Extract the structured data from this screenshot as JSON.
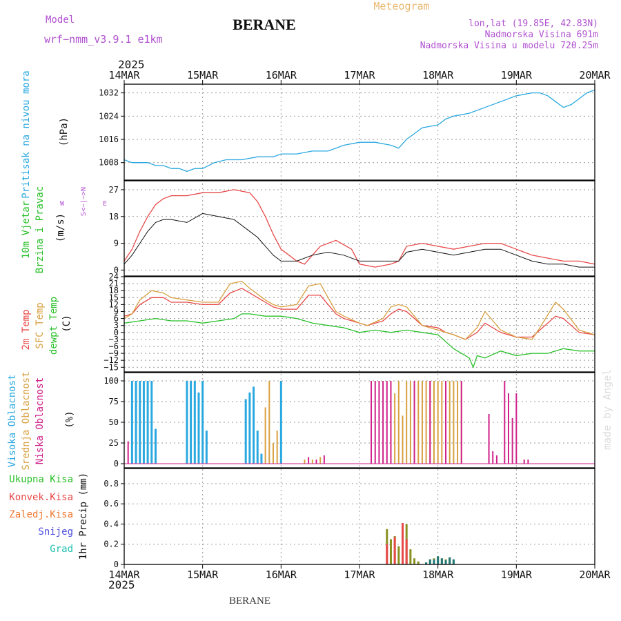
{
  "header": {
    "model_label": "Model",
    "model_name": "wrf−nmm_v3.9.1 e1km",
    "title": "BERANE",
    "subtitle": "Meteogram",
    "coords": "lon,lat (19.85E, 42.83N)",
    "elevation": "Nadmorska Visina 691m",
    "model_elevation": "Nadmorska Visina u modelu 720.25m",
    "year": "2025"
  },
  "footer": {
    "year": "2025",
    "station": "BERANE",
    "watermark": "made by Angel"
  },
  "colors": {
    "pressure": "#2aa8e0",
    "temp2m": "#e84848",
    "sfc": "#d8a040",
    "dewpt": "#28c028",
    "high": "#2aa8e0",
    "mid": "#d8a040",
    "low": "#d0208a",
    "precip_total": "#889020",
    "precip_conv": "#e84848",
    "hail": "#207878",
    "grid": "#999999"
  },
  "chart_data": [
    {
      "type": "time_axis",
      "xlim": [
        0,
        6
      ],
      "ticks": [
        0,
        1,
        2,
        3,
        4,
        5,
        6
      ],
      "tick_labels": [
        "14MAR",
        "15MAR",
        "16MAR",
        "17MAR",
        "18MAR",
        "19MAR",
        "20MAR"
      ]
    },
    {
      "type": "line",
      "labels": [
        "Pritisak na nivou mora"
      ],
      "ylabel": "(hPa)",
      "ylim": [
        1002,
        1035
      ],
      "yticks": [
        1008,
        1016,
        1024,
        1032
      ],
      "grid": true,
      "series": [
        {
          "x": [
            0,
            0.1,
            0.2,
            0.3,
            0.4,
            0.5,
            0.6,
            0.7,
            0.8,
            0.9,
            1.0,
            1.15,
            1.3,
            1.5,
            1.7,
            1.9,
            2.0,
            2.2,
            2.4,
            2.6,
            2.8,
            3.0,
            3.2,
            3.4,
            3.5,
            3.6,
            3.7,
            3.8,
            4.0,
            4.1,
            4.2,
            4.4,
            4.6,
            4.8,
            5.0,
            5.2,
            5.3,
            5.4,
            5.5,
            5.6,
            5.7,
            5.8,
            5.9,
            6.0
          ],
          "values": [
            1009,
            1008,
            1008,
            1008,
            1007,
            1007,
            1006,
            1006,
            1005,
            1006,
            1006,
            1008,
            1009,
            1009,
            1010,
            1010,
            1011,
            1011,
            1012,
            1012,
            1014,
            1015,
            1015,
            1014,
            1013,
            1016,
            1018,
            1020,
            1021,
            1023,
            1024,
            1025,
            1027,
            1029,
            1031,
            1032,
            1032,
            1031,
            1029,
            1027,
            1028,
            1030,
            1032,
            1033
          ]
        }
      ]
    },
    {
      "type": "line",
      "labels": [
        "10m Vjetar",
        "Brzina i Pravac"
      ],
      "ylabel": "(m/s)",
      "compass": {
        "w": "W",
        "e": "E",
        "vert": "S<−|−>N"
      },
      "ylim": [
        -2,
        30
      ],
      "yticks": [
        0,
        9,
        18,
        27
      ],
      "grid": true,
      "series": [
        {
          "name": "gust",
          "x": [
            0,
            0.1,
            0.2,
            0.3,
            0.4,
            0.5,
            0.6,
            0.8,
            1.0,
            1.2,
            1.4,
            1.6,
            1.7,
            1.8,
            1.9,
            2.0,
            2.2,
            2.3,
            2.5,
            2.7,
            2.9,
            3.0,
            3.2,
            3.4,
            3.5,
            3.6,
            3.8,
            4.0,
            4.2,
            4.4,
            4.6,
            4.8,
            5.0,
            5.2,
            5.4,
            5.6,
            5.8,
            6.0
          ],
          "values": [
            3,
            7,
            13,
            18,
            22,
            24,
            25,
            25,
            26,
            26,
            27,
            26,
            23,
            18,
            12,
            7,
            3,
            2,
            8,
            10,
            7,
            2,
            1,
            2,
            3,
            8,
            9,
            8,
            7,
            8,
            9,
            9,
            7,
            5,
            4,
            3,
            3,
            2
          ]
        },
        {
          "name": "speed",
          "x": [
            0,
            0.1,
            0.2,
            0.3,
            0.4,
            0.5,
            0.6,
            0.8,
            1.0,
            1.2,
            1.4,
            1.6,
            1.7,
            1.8,
            1.9,
            2.0,
            2.2,
            2.4,
            2.6,
            2.8,
            3.0,
            3.2,
            3.4,
            3.5,
            3.6,
            3.8,
            4.0,
            4.2,
            4.4,
            4.6,
            4.8,
            5.0,
            5.2,
            5.4,
            5.6,
            5.8,
            6.0
          ],
          "values": [
            2,
            5,
            9,
            13,
            16,
            17,
            17,
            16,
            19,
            18,
            17,
            13,
            11,
            8,
            5,
            3,
            3,
            5,
            6,
            5,
            3,
            3,
            3,
            3,
            6,
            7,
            6,
            5,
            6,
            7,
            7,
            5,
            3,
            2,
            2,
            1,
            1
          ]
        }
      ]
    },
    {
      "type": "line",
      "labels": [
        "2m Temp",
        "SFC Temp",
        "dewpt Temp"
      ],
      "ylabel": "(C)",
      "ylim": [
        -17,
        24
      ],
      "yticks": [
        -15,
        -12,
        -9,
        -6,
        -3,
        0,
        3,
        6,
        9,
        12,
        15,
        18,
        21,
        24
      ],
      "grid": true,
      "series": [
        {
          "name": "2m Temp",
          "x": [
            0,
            0.1,
            0.2,
            0.35,
            0.5,
            0.6,
            0.8,
            1.0,
            1.2,
            1.35,
            1.5,
            1.6,
            1.8,
            1.9,
            2.0,
            2.2,
            2.35,
            2.5,
            2.6,
            2.7,
            2.8,
            3.0,
            3.1,
            3.3,
            3.4,
            3.5,
            3.6,
            3.7,
            3.8,
            4.0,
            4.1,
            4.2,
            4.35,
            4.5,
            4.6,
            4.8,
            5.0,
            5.2,
            5.3,
            5.5,
            5.6,
            5.8,
            6.0
          ],
          "values": [
            7,
            8,
            12,
            15,
            15,
            13,
            13,
            12,
            12,
            17,
            19,
            17,
            13,
            11,
            10,
            10,
            16,
            16,
            12,
            8,
            6,
            4,
            3,
            5,
            8,
            10,
            9,
            6,
            3,
            2,
            0,
            -1,
            -3,
            0,
            4,
            0,
            -2,
            -2,
            1,
            7,
            6,
            0,
            -1
          ]
        },
        {
          "name": "SFC Temp",
          "x": [
            0,
            0.1,
            0.2,
            0.35,
            0.5,
            0.6,
            0.8,
            1.0,
            1.2,
            1.35,
            1.5,
            1.6,
            1.8,
            1.9,
            2.0,
            2.2,
            2.35,
            2.5,
            2.6,
            2.7,
            2.8,
            3.0,
            3.1,
            3.3,
            3.4,
            3.5,
            3.6,
            3.7,
            3.8,
            4.0,
            4.1,
            4.2,
            4.35,
            4.5,
            4.6,
            4.8,
            5.0,
            5.2,
            5.3,
            5.5,
            5.6,
            5.8,
            6.0
          ],
          "values": [
            6,
            8,
            14,
            18,
            17,
            15,
            14,
            13,
            13,
            21,
            22,
            19,
            14,
            12,
            11,
            12,
            20,
            21,
            15,
            9,
            7,
            4,
            3,
            6,
            11,
            12,
            11,
            7,
            3,
            1,
            0,
            -1,
            -3,
            2,
            9,
            1,
            -2,
            -3,
            2,
            13,
            10,
            1,
            -1
          ]
        },
        {
          "name": "dewpt Temp",
          "x": [
            0,
            0.2,
            0.4,
            0.6,
            0.8,
            1.0,
            1.2,
            1.4,
            1.5,
            1.6,
            1.8,
            2.0,
            2.2,
            2.4,
            2.6,
            2.8,
            3.0,
            3.2,
            3.4,
            3.6,
            3.8,
            4.0,
            4.1,
            4.2,
            4.3,
            4.4,
            4.45,
            4.5,
            4.6,
            4.8,
            5.0,
            5.2,
            5.4,
            5.6,
            5.8,
            6.0
          ],
          "values": [
            4,
            5,
            6,
            5,
            5,
            4,
            5,
            6,
            8,
            8,
            7,
            7,
            6,
            4,
            3,
            2,
            0,
            1,
            0,
            1,
            0,
            -1,
            -4,
            -7,
            -9,
            -11,
            -15,
            -10,
            -11,
            -8,
            -10,
            -9,
            -9,
            -7,
            -8,
            -8
          ]
        }
      ]
    },
    {
      "type": "bar",
      "labels": [
        "Visoka Oblacnost",
        "Srednja Oblacnost",
        "Niska Oblacnost"
      ],
      "ylabel": "(%)",
      "ylim": [
        -5,
        110
      ],
      "yticks": [
        0,
        25,
        50,
        75,
        100
      ],
      "grid": true,
      "series": [
        {
          "name": "Visoka Oblacnost",
          "x": [
            0.1,
            0.15,
            0.2,
            0.25,
            0.3,
            0.35,
            0.4,
            0.8,
            0.85,
            0.9,
            0.95,
            1.0,
            1.05,
            1.55,
            1.6,
            1.65,
            1.7,
            1.75,
            2.0
          ],
          "values": [
            100,
            100,
            100,
            100,
            100,
            100,
            42,
            100,
            100,
            100,
            86,
            100,
            40,
            78,
            86,
            93,
            40,
            12,
            100
          ]
        },
        {
          "name": "Srednja Oblacnost",
          "x": [
            1.8,
            1.85,
            1.9,
            1.95,
            2.3,
            2.4,
            2.5,
            3.3,
            3.4,
            3.45,
            3.5,
            3.55,
            3.6,
            3.65,
            3.7,
            3.75,
            3.8,
            3.85,
            3.9,
            3.95,
            4.0,
            4.05,
            4.1,
            4.15,
            4.2,
            4.25,
            4.3
          ],
          "values": [
            68,
            100,
            25,
            40,
            5,
            5,
            8,
            5,
            100,
            85,
            100,
            58,
            100,
            100,
            100,
            100,
            100,
            100,
            100,
            100,
            100,
            100,
            100,
            100,
            100,
            100,
            100
          ]
        },
        {
          "name": "Niska Oblacnost",
          "x": [
            0.05,
            2.35,
            2.45,
            2.55,
            3.15,
            3.2,
            3.25,
            3.3,
            3.35,
            3.4,
            3.7,
            3.9,
            4.1,
            4.3,
            4.65,
            4.7,
            4.75,
            4.85,
            4.9,
            4.95,
            5.0,
            5.1,
            5.15
          ],
          "values": [
            27,
            8,
            5,
            10,
            100,
            100,
            100,
            100,
            100,
            100,
            100,
            100,
            100,
            100,
            60,
            15,
            10,
            100,
            85,
            55,
            85,
            5,
            5
          ]
        }
      ]
    },
    {
      "type": "bar",
      "legend": [
        "Ukupna Kisa",
        "Konvek.Kisa",
        "Zaledj.Kisa",
        "Snijeg",
        "Grad"
      ],
      "ylabel": "1hr Precip (mm)",
      "ylim": [
        0,
        0.95
      ],
      "yticks": [
        0,
        0.2,
        0.4,
        0.6,
        0.8
      ],
      "grid": true,
      "series": [
        {
          "name": "Ukupna Kisa",
          "x": [
            3.35,
            3.4,
            3.45,
            3.5,
            3.55,
            3.6,
            3.65,
            3.7,
            3.75,
            3.85,
            3.9,
            3.95,
            4.0,
            4.05,
            4.1,
            4.15,
            4.2
          ],
          "values": [
            0.35,
            0.25,
            0.28,
            0.18,
            0.41,
            0.4,
            0.15,
            0.06,
            0.03,
            0.02,
            0.05,
            0.06,
            0.08,
            0.06,
            0.05,
            0.07,
            0.05
          ]
        },
        {
          "name": "Konvek.Kisa",
          "x": [
            3.35,
            3.45,
            3.55,
            3.6
          ],
          "values": [
            0.2,
            0.27,
            0.41,
            0.25
          ]
        },
        {
          "name": "Grad",
          "x": [
            3.85,
            3.9,
            3.95,
            4.0,
            4.05,
            4.1,
            4.15,
            4.2
          ],
          "values": [
            0.02,
            0.05,
            0.05,
            0.08,
            0.06,
            0.04,
            0.07,
            0.05
          ]
        }
      ]
    }
  ]
}
